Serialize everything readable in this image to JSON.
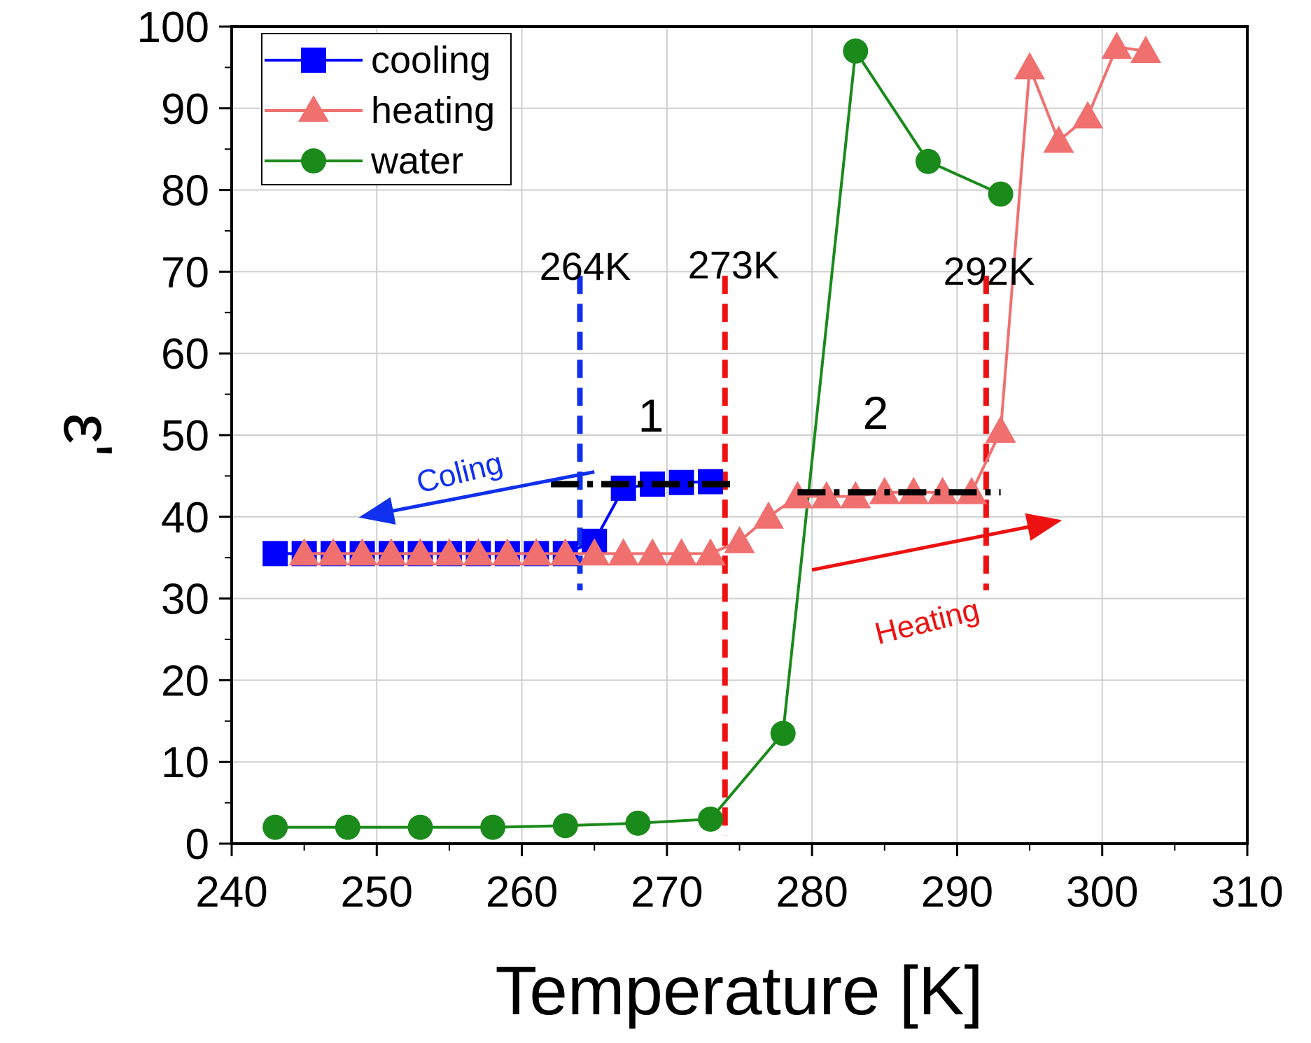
{
  "chart_data": {
    "type": "line",
    "title": "",
    "xlabel": "Temperature [K]",
    "ylabel": "ε'",
    "xlim": [
      240,
      310
    ],
    "ylim": [
      0,
      100
    ],
    "xticks": [
      "240",
      "250",
      "260",
      "270",
      "280",
      "290",
      "300",
      "310"
    ],
    "yticks": [
      "0",
      "10",
      "20",
      "30",
      "40",
      "50",
      "60",
      "70",
      "80",
      "90",
      "100"
    ],
    "grid": true,
    "legend_position": "top-left",
    "series": [
      {
        "name": "cooling",
        "color": "#0000ff",
        "marker": "square",
        "x": [
          243,
          245,
          247,
          249,
          251,
          253,
          255,
          257,
          259,
          261,
          263,
          265,
          267,
          269,
          271,
          273
        ],
        "y": [
          35.5,
          35.5,
          35.5,
          35.5,
          35.5,
          35.5,
          35.5,
          35.5,
          35.5,
          35.5,
          35.5,
          37,
          43.5,
          44,
          44.2,
          44.3
        ]
      },
      {
        "name": "heating",
        "color": "#f07070",
        "marker": "triangle",
        "x": [
          245,
          247,
          249,
          251,
          253,
          255,
          257,
          259,
          261,
          263,
          265,
          267,
          269,
          271,
          273,
          275,
          277,
          279,
          281,
          283,
          285,
          287,
          289,
          291,
          293,
          295,
          297,
          299,
          301,
          303
        ],
        "y": [
          35.5,
          35.5,
          35.5,
          35.5,
          35.5,
          35.5,
          35.5,
          35.5,
          35.5,
          35.5,
          35.5,
          35.5,
          35.5,
          35.5,
          35.5,
          37,
          40,
          42.5,
          42.5,
          42.5,
          43,
          43,
          43,
          43,
          50.5,
          95,
          86,
          89,
          97.5,
          97
        ]
      },
      {
        "name": "water",
        "color": "#1a8a1a",
        "marker": "circle",
        "x": [
          243,
          248,
          253,
          258,
          263,
          268,
          273,
          278,
          283,
          288,
          293
        ],
        "y": [
          2,
          2,
          2,
          2,
          2.2,
          2.5,
          3,
          13.5,
          97,
          83.5,
          79.5
        ]
      }
    ],
    "annotations": {
      "lines": [
        {
          "label": "264K",
          "x": 264,
          "color": "#1030ee"
        },
        {
          "label": "273K",
          "x": 274,
          "color": "#ee1111"
        },
        {
          "label": "292K",
          "x": 292,
          "color": "#ee1111"
        }
      ],
      "regions": [
        {
          "label": "1",
          "x": 268.5,
          "y": 55
        },
        {
          "label": "2",
          "x": 284,
          "y": 55
        }
      ],
      "plateaus": [
        {
          "x_start": 262,
          "x_end": 274.5,
          "y": 44
        },
        {
          "x_start": 279,
          "x_end": 293,
          "y": 43
        }
      ],
      "arrows": [
        {
          "label": "Coling",
          "color": "#1030ee",
          "x_from": 265,
          "y_from": 45.5,
          "x_to": 249,
          "y_to": 40
        },
        {
          "label": "Heating",
          "color": "#ee1111",
          "x_from": 280,
          "y_from": 33.5,
          "x_to": 297,
          "y_to": 39.5
        }
      ]
    }
  }
}
